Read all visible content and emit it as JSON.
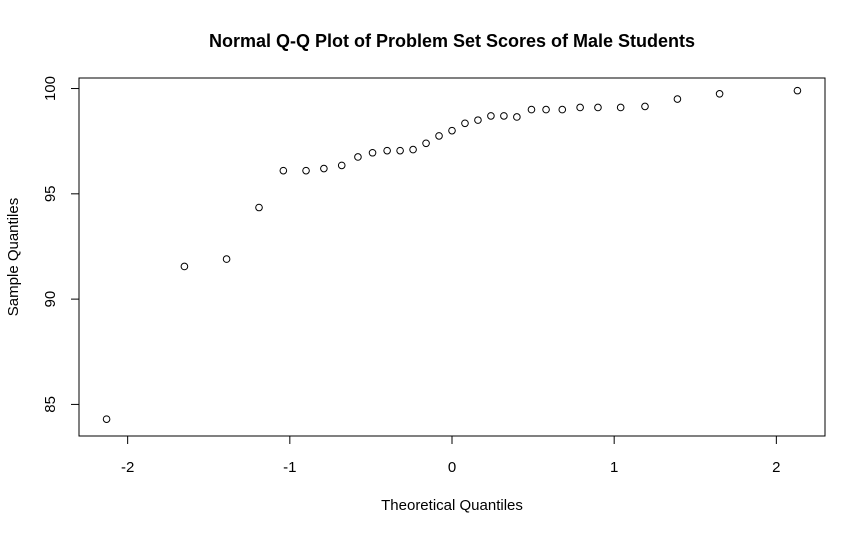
{
  "chart_data": {
    "type": "scatter",
    "title": "Normal Q-Q Plot of Problem Set Scores of Male Students",
    "xlabel": "Theoretical Quantiles",
    "ylabel": "Sample Quantiles",
    "xlim": [
      -2.3,
      2.3
    ],
    "ylim": [
      83.5,
      100.5
    ],
    "xticks": [
      -2,
      -1,
      0,
      1,
      2
    ],
    "xtick_labels": [
      "-2",
      "-1",
      "0",
      "1",
      "2"
    ],
    "yticks": [
      85,
      90,
      95,
      100
    ],
    "ytick_labels": [
      "85",
      "90",
      "95",
      "100"
    ],
    "grid": false,
    "marker": "open-circle",
    "marker_color": "#000000",
    "points": [
      {
        "x": -2.13,
        "y": 84.3
      },
      {
        "x": -1.65,
        "y": 91.55
      },
      {
        "x": -1.39,
        "y": 91.9
      },
      {
        "x": -1.19,
        "y": 94.35
      },
      {
        "x": -1.04,
        "y": 96.1
      },
      {
        "x": -0.9,
        "y": 96.1
      },
      {
        "x": -0.79,
        "y": 96.2
      },
      {
        "x": -0.68,
        "y": 96.35
      },
      {
        "x": -0.58,
        "y": 96.75
      },
      {
        "x": -0.49,
        "y": 96.95
      },
      {
        "x": -0.4,
        "y": 97.05
      },
      {
        "x": -0.32,
        "y": 97.05
      },
      {
        "x": -0.24,
        "y": 97.1
      },
      {
        "x": -0.16,
        "y": 97.4
      },
      {
        "x": -0.08,
        "y": 97.75
      },
      {
        "x": 0.0,
        "y": 98.0
      },
      {
        "x": 0.08,
        "y": 98.35
      },
      {
        "x": 0.16,
        "y": 98.5
      },
      {
        "x": 0.24,
        "y": 98.7
      },
      {
        "x": 0.32,
        "y": 98.7
      },
      {
        "x": 0.4,
        "y": 98.65
      },
      {
        "x": 0.49,
        "y": 99.0
      },
      {
        "x": 0.58,
        "y": 99.0
      },
      {
        "x": 0.68,
        "y": 99.0
      },
      {
        "x": 0.79,
        "y": 99.1
      },
      {
        "x": 0.9,
        "y": 99.1
      },
      {
        "x": 1.04,
        "y": 99.1
      },
      {
        "x": 1.19,
        "y": 99.15
      },
      {
        "x": 1.39,
        "y": 99.5
      },
      {
        "x": 1.65,
        "y": 99.75
      },
      {
        "x": 2.13,
        "y": 99.9
      }
    ]
  }
}
